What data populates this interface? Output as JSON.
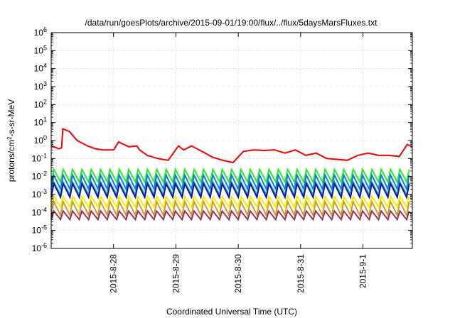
{
  "chart_data": {
    "type": "line",
    "title": "/data/run/goesPlots/archive/2015-09-01/19:00/flux/../flux/5daysMarsFluxes.txt",
    "xlabel": "Coordinated Universal Time (UTC)",
    "ylabel": {
      "base": "protons/cm",
      "sup": "2",
      "rest": "-s-sr-MeV"
    },
    "yscale": "log",
    "ylim": [
      1e-06,
      1000000.0
    ],
    "xlim": [
      "2015-08-27T00:00",
      "2015-09-01T19:00"
    ],
    "y_ticks": [
      {
        "value": 1e-06,
        "exp": "-6"
      },
      {
        "value": 1e-05,
        "exp": "-5"
      },
      {
        "value": 0.0001,
        "exp": "-4"
      },
      {
        "value": 0.001,
        "exp": "-3"
      },
      {
        "value": 0.01,
        "exp": "-2"
      },
      {
        "value": 0.1,
        "exp": "-1"
      },
      {
        "value": 1,
        "exp": "0"
      },
      {
        "value": 10.0,
        "exp": "1"
      },
      {
        "value": 100.0,
        "exp": "2"
      },
      {
        "value": 1000.0,
        "exp": "3"
      },
      {
        "value": 10000.0,
        "exp": "4"
      },
      {
        "value": 100000.0,
        "exp": "5"
      },
      {
        "value": 1000000.0,
        "exp": "6"
      }
    ],
    "x_ticks": [
      {
        "date": "2015-08-28",
        "label": "2015-8-28"
      },
      {
        "date": "2015-08-29",
        "label": "2015-8-29"
      },
      {
        "date": "2015-08-30",
        "label": "2015-8-30"
      },
      {
        "date": "2015-08-31",
        "label": "2015-8-31"
      },
      {
        "date": "2015-09-01",
        "label": "2015-9-1"
      }
    ],
    "grid": true,
    "legend": "none",
    "series": [
      {
        "color": "#ee0000",
        "x": [
          "2015-08-27T00:00",
          "2015-08-27T03:00",
          "2015-08-27T04:00",
          "2015-08-27T04:30",
          "2015-08-27T07:00",
          "2015-08-27T10:00",
          "2015-08-27T14:00",
          "2015-08-27T17:00",
          "2015-08-27T20:00",
          "2015-08-28T00:00",
          "2015-08-28T02:00",
          "2015-08-28T03:00",
          "2015-08-28T06:00",
          "2015-08-28T09:00",
          "2015-08-28T10:00",
          "2015-08-28T13:00",
          "2015-08-28T17:00",
          "2015-08-28T21:00",
          "2015-08-29T01:00",
          "2015-08-29T03:00",
          "2015-08-29T06:00",
          "2015-08-29T10:00",
          "2015-08-29T14:00",
          "2015-08-29T18:00",
          "2015-08-29T22:00",
          "2015-08-30T02:00",
          "2015-08-30T06:00",
          "2015-08-30T10:00",
          "2015-08-30T14:00",
          "2015-08-30T18:00",
          "2015-08-30T22:00",
          "2015-08-31T02:00",
          "2015-08-31T06:00",
          "2015-08-31T10:00",
          "2015-08-31T14:00",
          "2015-08-31T18:00",
          "2015-08-31T22:00",
          "2015-09-01T02:00",
          "2015-09-01T06:00",
          "2015-09-01T10:00",
          "2015-09-01T14:00",
          "2015-09-01T17:00",
          "2015-09-01T19:00"
        ],
        "y": [
          0.5,
          0.35,
          0.4,
          4.5,
          3.2,
          1.0,
          0.5,
          0.35,
          0.3,
          0.3,
          0.85,
          0.7,
          0.45,
          0.5,
          0.3,
          0.15,
          0.1,
          0.08,
          0.5,
          0.3,
          0.5,
          0.25,
          0.12,
          0.08,
          0.06,
          0.25,
          0.3,
          0.28,
          0.3,
          0.2,
          0.3,
          0.15,
          0.2,
          0.1,
          0.09,
          0.08,
          0.15,
          0.2,
          0.15,
          0.15,
          0.13,
          0.6,
          0.45
        ]
      },
      {
        "color": "#22ee22",
        "base": 0.005,
        "peak": 0.025,
        "period_hours": 3.6
      },
      {
        "color": "#1177ee",
        "base": 0.002,
        "peak": 0.012,
        "period_hours": 3.6
      },
      {
        "color": "#11bbbb",
        "base": 0.001,
        "peak": 0.005,
        "period_hours": 3.6
      },
      {
        "color": "#1111aa",
        "base": 0.0007,
        "peak": 0.004,
        "period_hours": 3.6
      },
      {
        "color": "#eeee00",
        "base": 0.0002,
        "peak": 0.0008,
        "period_hours": 3.6
      },
      {
        "color": "#cc9933",
        "base": 7e-05,
        "peak": 0.0004,
        "period_hours": 3.6
      },
      {
        "color": "#993366",
        "base": 4e-05,
        "peak": 0.00012,
        "period_hours": 3.6
      }
    ]
  }
}
